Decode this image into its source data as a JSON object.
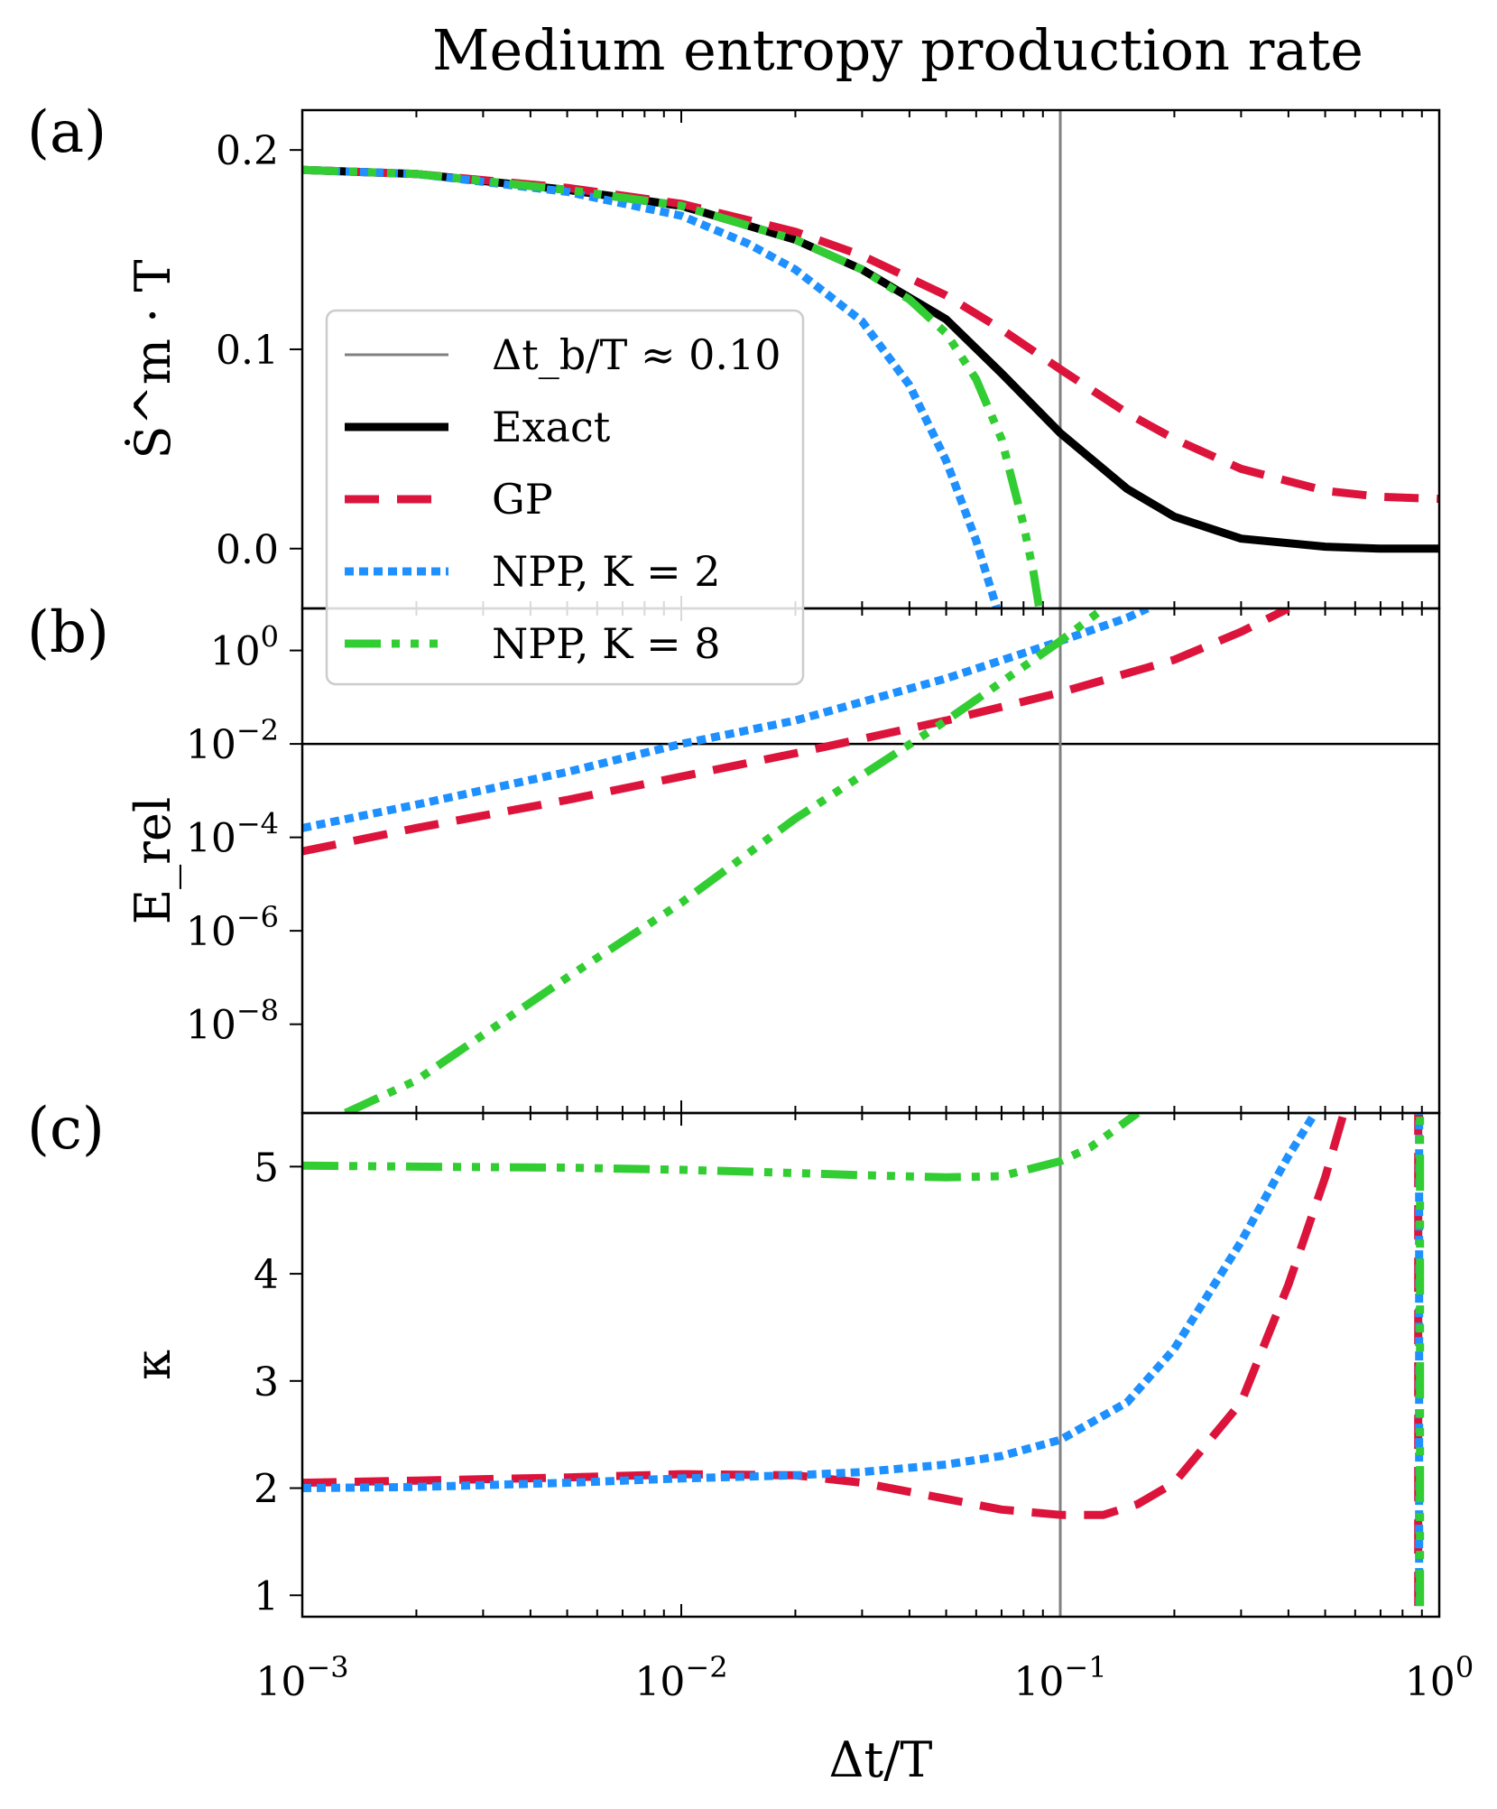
{
  "title": "Medium entropy production rate",
  "colors": {
    "exact": "#000000",
    "gp": "#dc143c",
    "npp2": "#1e90ff",
    "npp8": "#32cd32",
    "vline": "#808080"
  },
  "panel_labels": [
    "(a)",
    "(b)",
    "(c)"
  ],
  "xaxis": {
    "label": "Δt/T",
    "scale": "log",
    "range": [
      0.001,
      1
    ],
    "ticks": [
      {
        "value": 0.001,
        "base": "10",
        "exp": "−3"
      },
      {
        "value": 0.01,
        "base": "10",
        "exp": "−2"
      },
      {
        "value": 0.1,
        "base": "10",
        "exp": "−1"
      },
      {
        "value": 1,
        "base": "10",
        "exp": "0"
      }
    ]
  },
  "legend": {
    "position": "center-left",
    "items": [
      {
        "key": "vline",
        "label": "Δt_b/T ≈ 0.10"
      },
      {
        "key": "exact",
        "label": "Exact"
      },
      {
        "key": "gp",
        "label": "GP"
      },
      {
        "key": "npp2",
        "label": "NPP, K = 2"
      },
      {
        "key": "npp8",
        "label": "NPP, K = 8"
      }
    ]
  },
  "chart_data": [
    {
      "panel": "(a)",
      "type": "line",
      "ylabel": "Ṡ^m · T",
      "ylim": [
        -0.03,
        0.22
      ],
      "yticks": [
        0.0,
        0.1,
        0.2
      ],
      "ytick_labels": [
        "0.0",
        "0.1",
        "0.2"
      ],
      "vline": 0.1,
      "series": [
        {
          "name": "Exact",
          "key": "exact",
          "x": [
            0.001,
            0.002,
            0.005,
            0.01,
            0.02,
            0.03,
            0.05,
            0.07,
            0.1,
            0.15,
            0.2,
            0.3,
            0.5,
            0.7,
            1
          ],
          "y": [
            0.19,
            0.188,
            0.18,
            0.172,
            0.155,
            0.14,
            0.115,
            0.088,
            0.058,
            0.03,
            0.016,
            0.005,
            0.001,
            0.0,
            0.0
          ]
        },
        {
          "name": "GP",
          "key": "gp",
          "x": [
            0.001,
            0.002,
            0.005,
            0.01,
            0.02,
            0.03,
            0.05,
            0.07,
            0.1,
            0.15,
            0.2,
            0.3,
            0.5,
            0.7,
            1
          ],
          "y": [
            0.19,
            0.188,
            0.181,
            0.173,
            0.159,
            0.147,
            0.127,
            0.11,
            0.09,
            0.068,
            0.055,
            0.04,
            0.029,
            0.026,
            0.025
          ]
        },
        {
          "name": "NPP, K = 2",
          "key": "npp2",
          "x": [
            0.001,
            0.002,
            0.005,
            0.01,
            0.015,
            0.02,
            0.03,
            0.04,
            0.05,
            0.06,
            0.068
          ],
          "y": [
            0.19,
            0.188,
            0.179,
            0.167,
            0.153,
            0.14,
            0.114,
            0.082,
            0.044,
            0.004,
            -0.03
          ]
        },
        {
          "name": "NPP, K = 8",
          "key": "npp8",
          "x": [
            0.001,
            0.002,
            0.005,
            0.01,
            0.02,
            0.03,
            0.04,
            0.05,
            0.06,
            0.07,
            0.08,
            0.085,
            0.088
          ],
          "y": [
            0.19,
            0.188,
            0.18,
            0.172,
            0.155,
            0.14,
            0.125,
            0.108,
            0.085,
            0.055,
            0.012,
            -0.012,
            -0.03
          ]
        }
      ]
    },
    {
      "panel": "(b)",
      "type": "line",
      "ylabel": "E_rel",
      "yscale": "log",
      "ylim_log10": [
        -9.9,
        0.9
      ],
      "yticks_log10": [
        -8,
        -6,
        -4,
        -2,
        0
      ],
      "ytick_labels": [
        {
          "base": "10",
          "exp": "−8"
        },
        {
          "base": "10",
          "exp": "−6"
        },
        {
          "base": "10",
          "exp": "−4"
        },
        {
          "base": "10",
          "exp": "−2"
        },
        {
          "base": "10",
          "exp": "0"
        }
      ],
      "vline": 0.1,
      "series": [
        {
          "name": "GP",
          "key": "gp",
          "x": [
            0.001,
            0.002,
            0.005,
            0.01,
            0.02,
            0.05,
            0.1,
            0.2,
            0.3,
            0.4
          ],
          "y_log10": [
            -4.3,
            -3.8,
            -3.2,
            -2.7,
            -2.2,
            -1.5,
            -0.9,
            -0.2,
            0.4,
            0.9
          ]
        },
        {
          "name": "NPP, K = 2",
          "key": "npp2",
          "x": [
            0.001,
            0.002,
            0.005,
            0.01,
            0.02,
            0.05,
            0.1,
            0.15,
            0.17
          ],
          "y_log10": [
            -3.8,
            -3.3,
            -2.6,
            -2.0,
            -1.5,
            -0.6,
            0.2,
            0.7,
            0.9
          ]
        },
        {
          "name": "NPP, K = 8",
          "key": "npp8",
          "x": [
            0.0013,
            0.002,
            0.005,
            0.01,
            0.02,
            0.05,
            0.1,
            0.13
          ],
          "y_log10": [
            -9.9,
            -9.2,
            -7.0,
            -5.4,
            -3.6,
            -1.5,
            0.2,
            0.9
          ]
        }
      ]
    },
    {
      "panel": "(c)",
      "type": "line",
      "ylabel": "κ",
      "ylim": [
        0.8,
        5.5
      ],
      "yticks": [
        1,
        2,
        3,
        4,
        5
      ],
      "ytick_labels": [
        "1",
        "2",
        "3",
        "4",
        "5"
      ],
      "vline": 0.1,
      "series": [
        {
          "name": "GP",
          "key": "gp",
          "x": [
            0.001,
            0.002,
            0.005,
            0.01,
            0.02,
            0.03,
            0.05,
            0.07,
            0.1,
            0.13,
            0.16,
            0.2,
            0.3,
            0.4,
            0.5,
            0.56
          ],
          "y": [
            2.05,
            2.07,
            2.1,
            2.13,
            2.12,
            2.05,
            1.9,
            1.8,
            1.75,
            1.75,
            1.85,
            2.05,
            2.8,
            3.9,
            4.9,
            5.5
          ]
        },
        {
          "name": "NPP, K = 2",
          "key": "npp2",
          "x": [
            0.001,
            0.002,
            0.005,
            0.01,
            0.02,
            0.03,
            0.05,
            0.07,
            0.1,
            0.15,
            0.2,
            0.3,
            0.4,
            0.47
          ],
          "y": [
            2.0,
            2.01,
            2.05,
            2.09,
            2.12,
            2.15,
            2.22,
            2.3,
            2.45,
            2.8,
            3.3,
            4.3,
            5.1,
            5.5
          ]
        },
        {
          "name": "NPP, K = 8",
          "key": "npp8",
          "x": [
            0.001,
            0.002,
            0.005,
            0.01,
            0.02,
            0.03,
            0.05,
            0.07,
            0.1,
            0.12,
            0.14,
            0.16
          ],
          "y": [
            5.01,
            5.0,
            4.99,
            4.97,
            4.94,
            4.92,
            4.9,
            4.91,
            5.05,
            5.18,
            5.35,
            5.5
          ]
        },
        {
          "name": "GP",
          "key": "gp",
          "x": [
            0.88,
            0.88
          ],
          "y": [
            0.9,
            5.5
          ]
        },
        {
          "name": "NPP, K = 2",
          "key": "npp2",
          "x": [
            0.885,
            0.885
          ],
          "y": [
            0.9,
            5.5
          ]
        },
        {
          "name": "NPP, K = 8",
          "key": "npp8",
          "x": [
            0.89,
            0.89
          ],
          "y": [
            0.9,
            5.5
          ]
        }
      ]
    }
  ]
}
